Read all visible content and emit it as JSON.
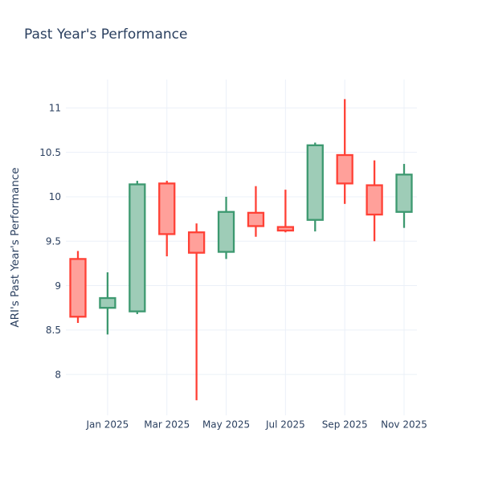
{
  "figure": {
    "title": "Past Year's Performance",
    "background_color": "#ffffff",
    "text_color": "#2a3f5f"
  },
  "chart_data": {
    "type": "candlestick",
    "title": "Past Year's Performance",
    "xlabel": "",
    "ylabel": "ARI's Past Year's Performance",
    "grid": true,
    "legend": false,
    "ylim": [
      7.54,
      11.32
    ],
    "y_ticks": [
      8,
      8.5,
      9,
      9.5,
      10,
      10.5,
      11
    ],
    "x_ticks": [
      {
        "index": 1,
        "label": "Jan 2025"
      },
      {
        "index": 3,
        "label": "Mar 2025"
      },
      {
        "index": 5,
        "label": "May 2025"
      },
      {
        "index": 7,
        "label": "Jul 2025"
      },
      {
        "index": 9,
        "label": "Sep 2025"
      },
      {
        "index": 11,
        "label": "Nov 2025"
      }
    ],
    "candles": [
      {
        "x": "Dec 2024",
        "open": 9.3,
        "high": 9.39,
        "low": 8.58,
        "close": 8.65
      },
      {
        "x": "Jan 2025",
        "open": 8.75,
        "high": 9.15,
        "low": 8.45,
        "close": 8.86
      },
      {
        "x": "Feb 2025",
        "open": 8.71,
        "high": 10.18,
        "low": 8.68,
        "close": 10.14
      },
      {
        "x": "Mar 2025",
        "open": 10.15,
        "high": 10.18,
        "low": 9.33,
        "close": 9.58
      },
      {
        "x": "Apr 2025",
        "open": 9.6,
        "high": 9.7,
        "low": 7.71,
        "close": 9.37
      },
      {
        "x": "May 2025",
        "open": 9.38,
        "high": 10.0,
        "low": 9.3,
        "close": 9.83
      },
      {
        "x": "Jun 2025",
        "open": 9.82,
        "high": 10.12,
        "low": 9.55,
        "close": 9.67
      },
      {
        "x": "Jul 2025",
        "open": 9.66,
        "high": 10.08,
        "low": 9.6,
        "close": 9.62
      },
      {
        "x": "Aug 2025",
        "open": 9.74,
        "high": 10.61,
        "low": 9.61,
        "close": 10.58
      },
      {
        "x": "Sep 2025",
        "open": 10.47,
        "high": 11.1,
        "low": 9.92,
        "close": 10.15
      },
      {
        "x": "Oct 2025",
        "open": 10.13,
        "high": 10.41,
        "low": 9.5,
        "close": 9.8
      },
      {
        "x": "Nov 2025",
        "open": 9.83,
        "high": 10.37,
        "low": 9.65,
        "close": 10.25
      }
    ],
    "colors": {
      "increasing_line": "#3D9970",
      "increasing_fill": "#9ECCB7",
      "decreasing_line": "#FF4136",
      "decreasing_fill": "#FFA09A",
      "grid": "#EBF0F8",
      "text": "#2a3f5f"
    }
  }
}
